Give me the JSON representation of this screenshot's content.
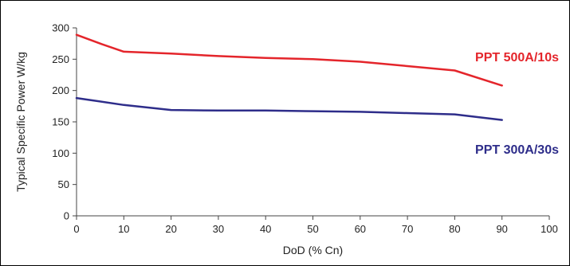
{
  "chart_data": {
    "type": "line",
    "title": "",
    "xlabel": "DoD (% Cn)",
    "ylabel": "Typical Specific Power W/kg",
    "xlim": [
      0,
      100
    ],
    "ylim": [
      0,
      300
    ],
    "x_ticks": [
      0,
      10,
      20,
      30,
      40,
      50,
      60,
      70,
      80,
      90,
      100
    ],
    "y_ticks": [
      0,
      50,
      100,
      150,
      200,
      250,
      300
    ],
    "grid": false,
    "legend": "inline-right",
    "series": [
      {
        "name": "PPT 500A/10s",
        "color": "#e4252b",
        "x": [
          0,
          5,
          10,
          20,
          30,
          40,
          50,
          60,
          70,
          80,
          90
        ],
        "y": [
          289,
          275,
          262,
          259,
          255,
          252,
          250,
          246,
          239,
          232,
          208
        ]
      },
      {
        "name": "PPT 300A/30s",
        "color": "#2e2d8a",
        "x": [
          0,
          10,
          20,
          30,
          40,
          50,
          60,
          70,
          80,
          90
        ],
        "y": [
          188,
          177,
          169,
          168,
          168,
          167,
          166,
          164,
          162,
          153
        ]
      }
    ]
  }
}
